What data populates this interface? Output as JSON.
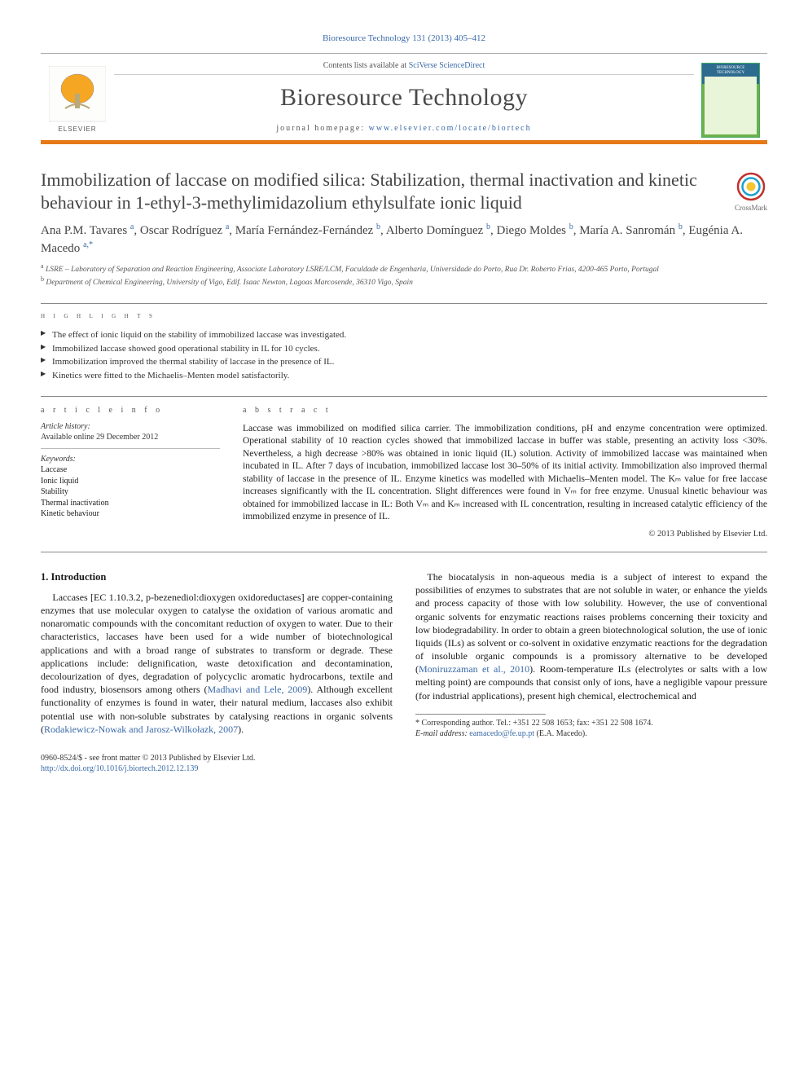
{
  "cite_line": {
    "text": "Bioresource Technology 131 (2013) 405–412",
    "link_color": "#3a6aa8"
  },
  "masthead": {
    "contents_prefix": "Contents lists available at ",
    "contents_link": "SciVerse ScienceDirect",
    "journal_name": "Bioresource Technology",
    "homepage_prefix": "journal homepage: ",
    "homepage_link": "www.elsevier.com/locate/biortech",
    "publisher_logo_label": "ELSEVIER",
    "cover_label": "BIORESOURCE TECHNOLOGY",
    "accent_color": "#e67817"
  },
  "title": "Immobilization of laccase on modified silica: Stabilization, thermal inactivation and kinetic behaviour in 1-ethyl-3-methylimidazolium ethylsulfate ionic liquid",
  "crossmark_label": "CrossMark",
  "authors_html": "Ana P.M. Tavares <sup class='aff-sup'>a</sup>, Oscar Rodríguez <sup class='aff-sup'>a</sup>, María Fernández-Fernández <sup class='aff-sup'>b</sup>, Alberto Domínguez <sup class='aff-sup'>b</sup>, Diego Moldes <sup class='aff-sup'>b</sup>, María A. Sanromán <sup class='aff-sup'>b</sup>, Eugénia A. Macedo <sup class='aff-sup'>a,</sup><sup class='corr'>*</sup>",
  "affiliations": [
    {
      "sup": "a",
      "text": "LSRE – Laboratory of Separation and Reaction Engineering, Associate Laboratory LSRE/LCM, Faculdade de Engenharia, Universidade do Porto, Rua Dr. Roberto Frias, 4200-465 Porto, Portugal"
    },
    {
      "sup": "b",
      "text": "Department of Chemical Engineering, University of Vigo, Edif. Isaac Newton, Lagoas Marcosende, 36310 Vigo, Spain"
    }
  ],
  "highlights": {
    "heading": "h i g h l i g h t s",
    "items": [
      "The effect of ionic liquid on the stability of immobilized laccase was investigated.",
      "Immobilized laccase showed good operational stability in IL for 10 cycles.",
      "Immobilization improved the thermal stability of laccase in the presence of IL.",
      "Kinetics were fitted to the Michaelis–Menten model satisfactorily."
    ]
  },
  "article_info": {
    "heading": "a r t i c l e   i n f o",
    "history_label": "Article history:",
    "history_line": "Available online 29 December 2012",
    "keywords_label": "Keywords:",
    "keywords": [
      "Laccase",
      "Ionic liquid",
      "Stability",
      "Thermal inactivation",
      "Kinetic behaviour"
    ]
  },
  "abstract": {
    "heading": "a b s t r a c t",
    "body": "Laccase was immobilized on modified silica carrier. The immobilization conditions, pH and enzyme concentration were optimized. Operational stability of 10 reaction cycles showed that immobilized laccase in buffer was stable, presenting an activity loss <30%. Nevertheless, a high decrease >80% was obtained in ionic liquid (IL) solution. Activity of immobilized laccase was maintained when incubated in IL. After 7 days of incubation, immobilized laccase lost 30–50% of its initial activity. Immobilization also improved thermal stability of laccase in the presence of IL. Enzyme kinetics was modelled with Michaelis–Menten model. The Kₘ value for free laccase increases significantly with the IL concentration. Slight differences were found in Vₘ for free enzyme. Unusual kinetic behaviour was obtained for immobilized laccase in IL: Both Vₘ and Kₘ increased with IL concentration, resulting in increased catalytic efficiency of the immobilized enzyme in presence of IL.",
    "copyright": "© 2013 Published by Elsevier Ltd."
  },
  "body": {
    "section_number": "1.",
    "section_title": "Introduction",
    "p1_a": "Laccases [EC 1.10.3.2, p-bezenediol:dioxygen oxidoreductases] are copper-containing enzymes that use molecular oxygen to catalyse the oxidation of various aromatic and nonaromatic compounds with the concomitant reduction of oxygen to water. Due to their characteristics, laccases have been used for a wide number of biotechnological applications and with a broad range of substrates to transform or degrade. These applications include: delignification, waste detoxification and decontamination, decolourization of dyes, degradation of polycyclic aromatic hydrocarbons, textile and food industry, biosensors among others (",
    "p1_link1": "Madhavi and Lele, 2009",
    "p1_b": "). Although excellent functionality of enzymes is found in water, their natural medium, laccases also exhibit potential use with non-soluble substrates by catalysing reactions in organic solvents (",
    "p1_link2": "Rodakiewicz-Nowak and Jarosz-Wilkołazk, 2007",
    "p1_c": ").",
    "p2_a": "The biocatalysis in non-aqueous media is a subject of interest to expand the possibilities of enzymes to substrates that are not soluble in water, or enhance the yields and process capacity of those with low solubility. However, the use of conventional organic solvents for enzymatic reactions raises problems concerning their toxicity and low biodegradability. In order to obtain a green biotechnological solution, the use of ionic liquids (ILs) as solvent or co-solvent in oxidative enzymatic reactions for the degradation of insoluble organic compounds is a promissory alternative to be developed (",
    "p2_link1": "Moniruzzaman et al., 2010",
    "p2_b": "). Room-temperature ILs (electrolytes or salts with a low melting point) are compounds that consist only of ions, have a negligible vapour pressure (for industrial applications), present high chemical, electrochemical and"
  },
  "footnote": {
    "marker": "*",
    "line1": "Corresponding author. Tel.: +351 22 508 1653; fax: +351 22 508 1674.",
    "email_label": "E-mail address: ",
    "email": "eamacedo@fe.up.pt",
    "email_suffix": " (E.A. Macedo)."
  },
  "footer": {
    "issn_line": "0960-8524/$ - see front matter © 2013 Published by Elsevier Ltd.",
    "doi": "http://dx.doi.org/10.1016/j.biortech.2012.12.139"
  },
  "colors": {
    "link": "#3a6aa8",
    "accent": "#e67817",
    "text": "#1a1a1a",
    "muted": "#555555"
  }
}
